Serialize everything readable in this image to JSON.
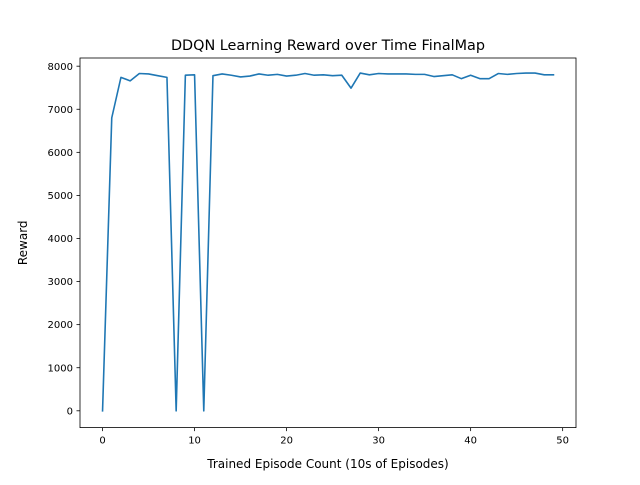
{
  "chart_data": {
    "type": "line",
    "title": "DDQN Learning Reward over Time FinalMap",
    "xlabel": "Trained Episode Count (10s of Episodes)",
    "ylabel": "Reward",
    "xlim": [
      -2.45,
      51.45
    ],
    "ylim": [
      -390,
      8190
    ],
    "xticks": [
      0,
      10,
      20,
      30,
      40,
      50
    ],
    "yticks": [
      0,
      1000,
      2000,
      3000,
      4000,
      5000,
      6000,
      7000,
      8000
    ],
    "xtick_labels": [
      "0",
      "10",
      "20",
      "30",
      "40",
      "50"
    ],
    "ytick_labels": [
      "0",
      "1000",
      "2000",
      "3000",
      "4000",
      "5000",
      "6000",
      "7000",
      "8000"
    ],
    "grid": false,
    "legend": "none",
    "series": [
      {
        "color": "#1f77b4",
        "x": [
          0,
          1,
          2,
          3,
          4,
          5,
          6,
          7,
          8,
          9,
          10,
          11,
          12,
          13,
          14,
          15,
          16,
          17,
          18,
          19,
          20,
          21,
          22,
          23,
          24,
          25,
          26,
          27,
          28,
          29,
          30,
          31,
          32,
          33,
          34,
          35,
          36,
          37,
          38,
          39,
          40,
          41,
          42,
          43,
          44,
          45,
          46,
          47,
          48,
          49
        ],
        "values": [
          0,
          6800,
          7740,
          7660,
          7830,
          7820,
          7780,
          7740,
          0,
          7790,
          7800,
          0,
          7780,
          7820,
          7790,
          7750,
          7770,
          7820,
          7790,
          7810,
          7770,
          7790,
          7830,
          7790,
          7800,
          7780,
          7790,
          7490,
          7840,
          7800,
          7830,
          7820,
          7820,
          7820,
          7810,
          7810,
          7760,
          7780,
          7800,
          7710,
          7790,
          7710,
          7710,
          7830,
          7810,
          7830,
          7840,
          7840,
          7800,
          7800
        ]
      }
    ]
  }
}
